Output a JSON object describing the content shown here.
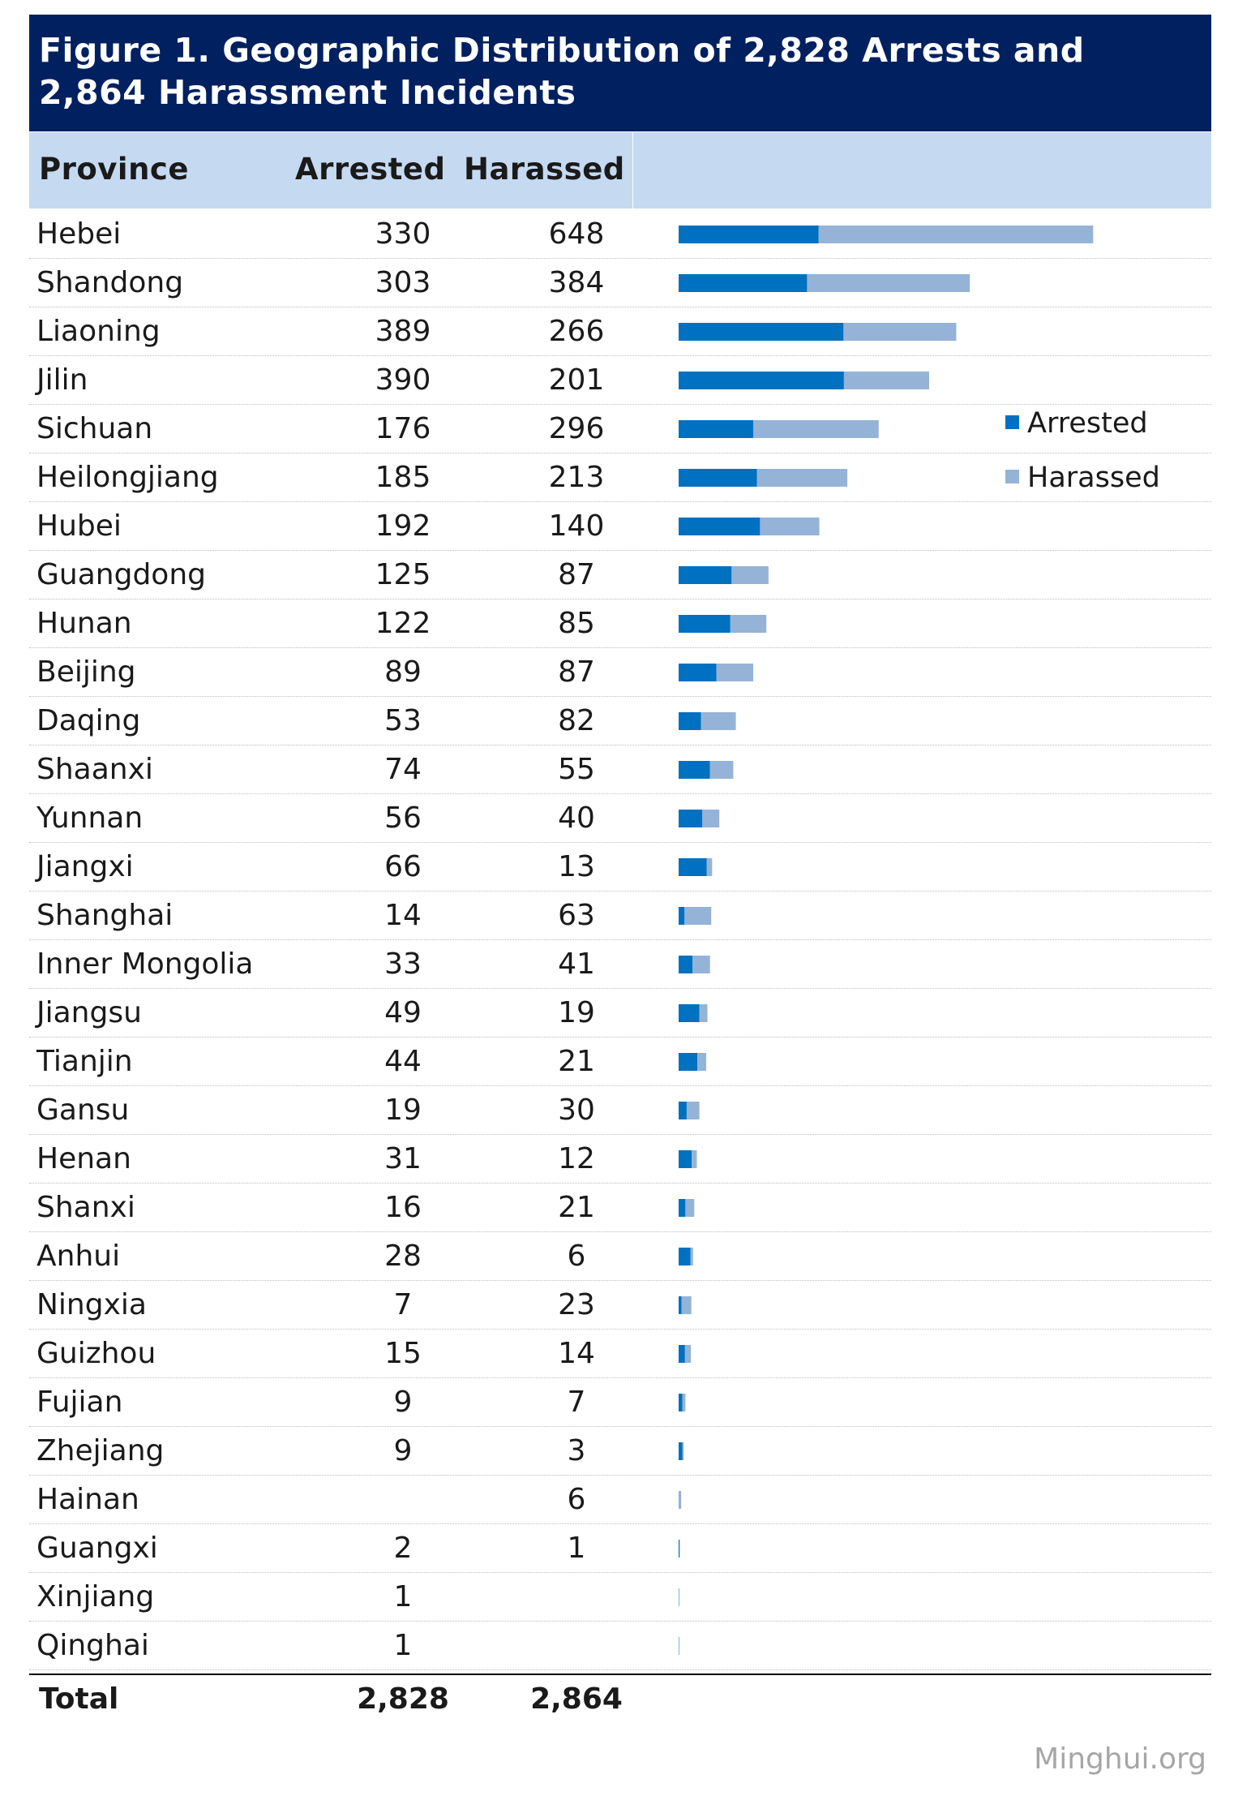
{
  "title": "Figure 1. Geographic Distribution of 2,828 Arrests and 2,864 Harassment Incidents",
  "headers": {
    "province": "Province",
    "arrested": "Arrested",
    "harassed": "Harassed"
  },
  "legend": {
    "arrested": "Arrested",
    "harassed": "Harassed"
  },
  "colors": {
    "arrested": "#0070c0",
    "harassed": "#95b3d7",
    "title_bg": "#002060",
    "header_bg": "#c5d9f1"
  },
  "total": {
    "label": "Total",
    "arrested": "2,828",
    "harassed": "2,864"
  },
  "source": "Minghui.org",
  "chart_data": {
    "type": "bar",
    "orientation": "horizontal",
    "stacked": true,
    "categories": [
      "Hebei",
      "Shandong",
      "Liaoning",
      "Jilin",
      "Sichuan",
      "Heilongjiang",
      "Hubei",
      "Guangdong",
      "Hunan",
      "Beijing",
      "Daqing",
      "Shaanxi",
      "Yunnan",
      "Jiangxi",
      "Shanghai",
      "Inner Mongolia",
      "Jiangsu",
      "Tianjin",
      "Gansu",
      "Henan",
      "Shanxi",
      "Anhui",
      "Ningxia",
      "Guizhou",
      "Fujian",
      "Zhejiang",
      "Hainan",
      "Guangxi",
      "Xinjiang",
      "Qinghai"
    ],
    "series": [
      {
        "name": "Arrested",
        "values": [
          330,
          303,
          389,
          390,
          176,
          185,
          192,
          125,
          122,
          89,
          53,
          74,
          56,
          66,
          14,
          33,
          49,
          44,
          19,
          31,
          16,
          28,
          7,
          15,
          9,
          9,
          null,
          2,
          1,
          1
        ]
      },
      {
        "name": "Harassed",
        "values": [
          648,
          384,
          266,
          201,
          296,
          213,
          140,
          87,
          85,
          87,
          82,
          55,
          40,
          13,
          63,
          41,
          19,
          21,
          30,
          12,
          21,
          6,
          23,
          14,
          7,
          3,
          6,
          1,
          null,
          null
        ]
      }
    ],
    "legend_position": "right"
  }
}
